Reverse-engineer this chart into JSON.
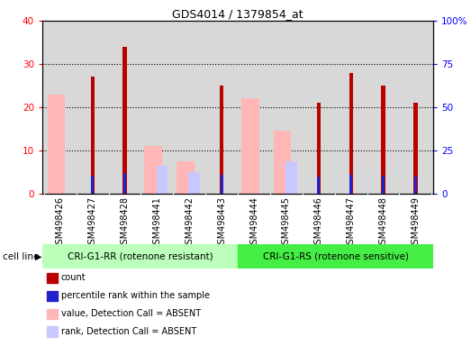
{
  "title": "GDS4014 / 1379854_at",
  "samples": [
    "GSM498426",
    "GSM498427",
    "GSM498428",
    "GSM498441",
    "GSM498442",
    "GSM498443",
    "GSM498444",
    "GSM498445",
    "GSM498446",
    "GSM498447",
    "GSM498448",
    "GSM498449"
  ],
  "count_values": [
    0,
    27,
    34,
    0,
    0,
    25,
    0,
    0,
    21,
    28,
    25,
    21
  ],
  "rank_values": [
    0,
    10.5,
    12,
    0,
    0,
    11,
    0,
    0,
    10,
    11,
    10.5,
    10
  ],
  "pink_values": [
    23,
    0,
    0,
    11,
    7.5,
    0,
    22,
    14.5,
    0,
    0,
    0,
    0
  ],
  "lavender_values": [
    0,
    0,
    0,
    6.5,
    5,
    0,
    0,
    7.5,
    0,
    0,
    0,
    0
  ],
  "group1_label": "CRI-G1-RR (rotenone resistant)",
  "group2_label": "CRI-G1-RS (rotenone sensitive)",
  "ylim_left": [
    0,
    40
  ],
  "ylim_right": [
    0,
    100
  ],
  "yticks_left": [
    0,
    10,
    20,
    30,
    40
  ],
  "yticks_right": [
    0,
    25,
    50,
    75,
    100
  ],
  "ytick_labels_right": [
    "0",
    "25",
    "50",
    "75",
    "100%"
  ],
  "count_color": "#bb0000",
  "rank_color": "#2222cc",
  "pink_color": "#ffb6b6",
  "lavender_color": "#c8c8ff",
  "group1_bg": "#bbffbb",
  "group2_bg": "#44ee44",
  "axis_bg": "#d8d8d8",
  "legend_items": [
    {
      "color": "#bb0000",
      "label": "count"
    },
    {
      "color": "#2222cc",
      "label": "percentile rank within the sample"
    },
    {
      "color": "#ffb6b6",
      "label": "value, Detection Call = ABSENT"
    },
    {
      "color": "#c8c8ff",
      "label": "rank, Detection Call = ABSENT"
    }
  ]
}
